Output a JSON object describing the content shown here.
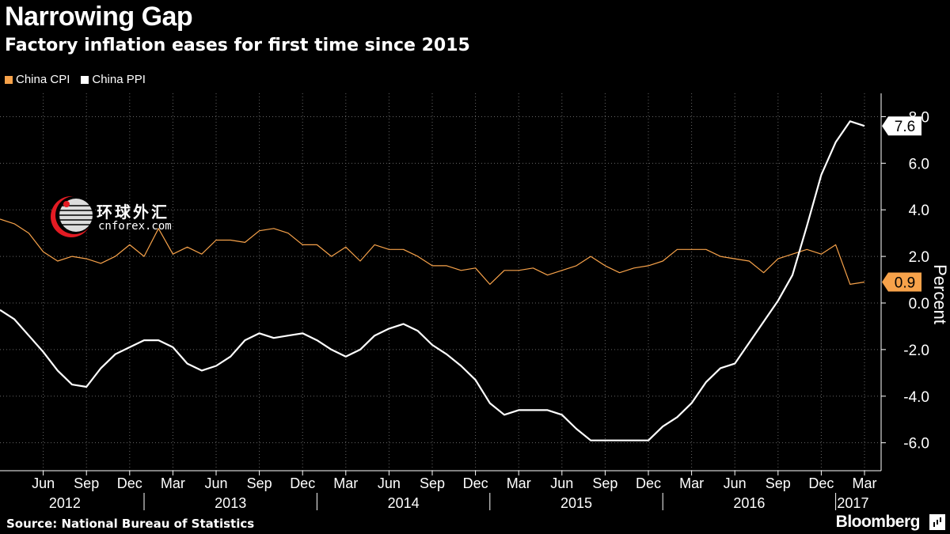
{
  "header": {
    "title": "Narrowing Gap",
    "subtitle": "Factory inflation eases for first time since 2015"
  },
  "legend": [
    {
      "label": "China CPI",
      "color": "#f7a24a"
    },
    {
      "label": "China PPI",
      "color": "#ffffff"
    }
  ],
  "footer": {
    "source": "Source: National Bureau of Statistics",
    "brand": "Bloomberg"
  },
  "watermark": {
    "text": "环球外汇",
    "sub": "cnforex.com"
  },
  "chart_data": {
    "type": "line",
    "title": "Narrowing Gap",
    "subtitle": "Factory inflation eases for first time since 2015",
    "ylabel": "Percent",
    "ylim": [
      -7.2,
      9.0
    ],
    "yticks": [
      -6.0,
      -4.0,
      -2.0,
      0.0,
      2.0,
      4.0,
      6.0,
      8.0
    ],
    "ytick_labels": [
      "-6.0",
      "-4.0",
      "-2.0",
      "0.0",
      "2.0",
      "4.0",
      "6.0",
      "8.0"
    ],
    "x_start": "2012-03",
    "x_end": "2017-03",
    "month_ticks": [
      "Jun",
      "Sep",
      "Dec",
      "Mar",
      "Jun",
      "Sep",
      "Dec",
      "Mar",
      "Jun",
      "Sep",
      "Dec",
      "Mar",
      "Jun",
      "Sep",
      "Dec",
      "Mar",
      "Jun",
      "Sep",
      "Dec",
      "Mar"
    ],
    "year_labels": [
      "2012",
      "2013",
      "2014",
      "2015",
      "2016",
      "2017"
    ],
    "series": [
      {
        "name": "China CPI",
        "color": "#f7a24a",
        "last_label": "0.9",
        "values": [
          3.6,
          3.4,
          3.0,
          2.2,
          1.8,
          2.0,
          1.9,
          1.7,
          2.0,
          2.5,
          2.0,
          3.2,
          2.1,
          2.4,
          2.1,
          2.7,
          2.7,
          2.6,
          3.1,
          3.2,
          3.0,
          2.5,
          2.5,
          2.0,
          2.4,
          1.8,
          2.5,
          2.3,
          2.3,
          2.0,
          1.6,
          1.6,
          1.4,
          1.5,
          0.8,
          1.4,
          1.4,
          1.5,
          1.2,
          1.4,
          1.6,
          2.0,
          1.6,
          1.3,
          1.5,
          1.6,
          1.8,
          2.3,
          2.3,
          2.3,
          2.0,
          1.9,
          1.8,
          1.3,
          1.9,
          2.1,
          2.3,
          2.1,
          2.5,
          0.8,
          0.9
        ]
      },
      {
        "name": "China PPI",
        "color": "#ffffff",
        "last_label": "7.6",
        "values": [
          -0.3,
          -0.7,
          -1.4,
          -2.1,
          -2.9,
          -3.5,
          -3.6,
          -2.8,
          -2.2,
          -1.9,
          -1.6,
          -1.6,
          -1.9,
          -2.6,
          -2.9,
          -2.7,
          -2.3,
          -1.6,
          -1.3,
          -1.5,
          -1.4,
          -1.3,
          -1.6,
          -2.0,
          -2.3,
          -2.0,
          -1.4,
          -1.1,
          -0.9,
          -1.2,
          -1.8,
          -2.2,
          -2.7,
          -3.3,
          -4.3,
          -4.8,
          -4.6,
          -4.6,
          -4.6,
          -4.8,
          -5.4,
          -5.9,
          -5.9,
          -5.9,
          -5.9,
          -5.9,
          -5.3,
          -4.9,
          -4.3,
          -3.4,
          -2.8,
          -2.6,
          -1.7,
          -0.8,
          0.1,
          1.2,
          3.3,
          5.5,
          6.9,
          7.8,
          7.6
        ]
      }
    ]
  }
}
